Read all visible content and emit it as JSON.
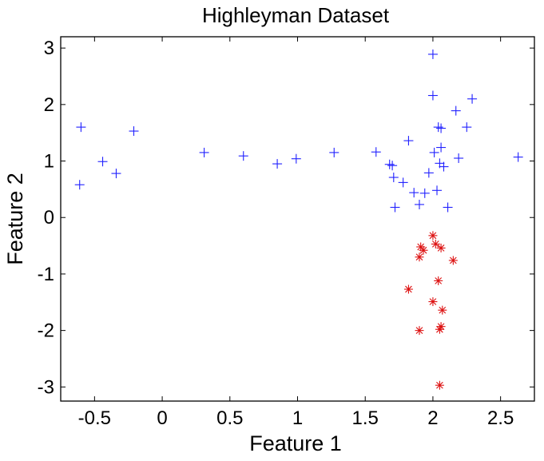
{
  "chart_data": {
    "type": "scatter",
    "title": "Highleyman Dataset",
    "xlabel": "Feature 1",
    "ylabel": "Feature 2",
    "xlim": [
      -0.75,
      2.75
    ],
    "ylim": [
      -3.25,
      3.2
    ],
    "xticks": [
      -0.5,
      0,
      0.5,
      1,
      1.5,
      2,
      2.5
    ],
    "xtick_labels": [
      "-0.5",
      "0",
      "0.5",
      "1",
      "1.5",
      "2",
      "2.5"
    ],
    "yticks": [
      -3,
      -2,
      -1,
      0,
      1,
      2,
      3
    ],
    "ytick_labels": [
      "-3",
      "-2",
      "-1",
      "0",
      "1",
      "2",
      "3"
    ],
    "grid": false,
    "series": [
      {
        "marker": "+",
        "color": "#2020ff",
        "points": [
          [
            -0.6,
            1.6
          ],
          [
            -0.44,
            0.99
          ],
          [
            -0.34,
            0.78
          ],
          [
            -0.61,
            0.58
          ],
          [
            -0.21,
            1.53
          ],
          [
            0.31,
            1.15
          ],
          [
            0.6,
            1.09
          ],
          [
            0.85,
            0.95
          ],
          [
            0.99,
            1.04
          ],
          [
            1.27,
            1.15
          ],
          [
            1.58,
            1.16
          ],
          [
            1.68,
            0.94
          ],
          [
            1.7,
            0.92
          ],
          [
            1.71,
            0.71
          ],
          [
            1.72,
            0.18
          ],
          [
            1.78,
            0.62
          ],
          [
            1.82,
            1.36
          ],
          [
            1.86,
            0.44
          ],
          [
            1.9,
            0.23
          ],
          [
            1.94,
            0.43
          ],
          [
            1.97,
            0.79
          ],
          [
            2.0,
            2.89
          ],
          [
            2.0,
            2.16
          ],
          [
            2.01,
            1.15
          ],
          [
            2.03,
            0.48
          ],
          [
            2.04,
            1.6
          ],
          [
            2.05,
            0.96
          ],
          [
            2.06,
            1.58
          ],
          [
            2.06,
            1.24
          ],
          [
            2.08,
            0.9
          ],
          [
            2.11,
            0.18
          ],
          [
            2.17,
            1.89
          ],
          [
            2.19,
            1.05
          ],
          [
            2.25,
            1.6
          ],
          [
            2.29,
            2.1
          ],
          [
            2.63,
            1.07
          ]
        ]
      },
      {
        "marker": "*",
        "color": "#dd1111",
        "points": [
          [
            2.0,
            -0.32
          ],
          [
            2.02,
            -0.47
          ],
          [
            1.91,
            -0.52
          ],
          [
            2.06,
            -0.54
          ],
          [
            1.93,
            -0.58
          ],
          [
            1.9,
            -0.7
          ],
          [
            2.15,
            -0.76
          ],
          [
            2.04,
            -1.12
          ],
          [
            1.82,
            -1.27
          ],
          [
            2.0,
            -1.49
          ],
          [
            2.07,
            -1.64
          ],
          [
            2.06,
            -1.93
          ],
          [
            2.05,
            -1.98
          ],
          [
            1.9,
            -2.0
          ],
          [
            2.05,
            -2.97
          ]
        ]
      }
    ]
  }
}
